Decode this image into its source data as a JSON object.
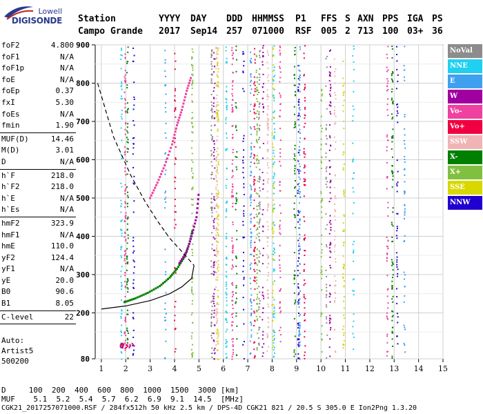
{
  "logo": {
    "line1": "Lowell",
    "line2": "DIGISONDE"
  },
  "header": {
    "labels": [
      "Station",
      "YYYY",
      "DAY",
      "DDD",
      "HHMMSS",
      "P1",
      "FFS",
      "S",
      "AXN",
      "PPS",
      "IGA",
      "PS"
    ],
    "values": [
      "Campo Grande",
      "2017",
      "Sep14",
      "257",
      "071000",
      "RSF",
      "005",
      "2",
      "713",
      "100",
      "03+",
      "36"
    ]
  },
  "params_group1": [
    {
      "k": "foF2",
      "v": "4.800"
    },
    {
      "k": "foF1",
      "v": "N/A"
    },
    {
      "k": "foF1p",
      "v": "N/A"
    },
    {
      "k": "foE",
      "v": "N/A"
    },
    {
      "k": "foEp",
      "v": "0.37"
    },
    {
      "k": "fxI",
      "v": "5.30"
    },
    {
      "k": "foEs",
      "v": "N/A"
    },
    {
      "k": "fmin",
      "v": "1.90"
    }
  ],
  "params_group2": [
    {
      "k": "MUF(D)",
      "v": "14.46"
    },
    {
      "k": "M(D)",
      "v": "3.01"
    },
    {
      "k": "D",
      "v": "N/A"
    }
  ],
  "params_group3": [
    {
      "k": "h`F",
      "v": "218.0"
    },
    {
      "k": "h`F2",
      "v": "218.0"
    },
    {
      "k": "h`E",
      "v": "N/A"
    },
    {
      "k": "h`Es",
      "v": "N/A"
    }
  ],
  "params_group4": [
    {
      "k": "hmF2",
      "v": "323.9"
    },
    {
      "k": "hmF1",
      "v": "N/A"
    },
    {
      "k": "hmE",
      "v": "110.0"
    },
    {
      "k": "yF2",
      "v": "124.4"
    },
    {
      "k": "yF1",
      "v": "N/A"
    },
    {
      "k": "yE",
      "v": "20.0"
    },
    {
      "k": "B0",
      "v": "90.6"
    },
    {
      "k": "B1",
      "v": "8.05"
    }
  ],
  "params_group5": [
    {
      "k": "C-level",
      "v": "22"
    }
  ],
  "autoscaling": {
    "line1": "Auto:",
    "line2": "Artist5",
    "line3": "500200"
  },
  "legend": [
    {
      "label": "NoVal",
      "color": "#8c8c8c"
    },
    {
      "label": "NNE",
      "color": "#20d0f0"
    },
    {
      "label": "E",
      "color": "#40a0f0"
    },
    {
      "label": "W",
      "color": "#a000a0"
    },
    {
      "label": "Vo-",
      "color": "#f040a0"
    },
    {
      "label": "Vo+",
      "color": "#f00040"
    },
    {
      "label": "SSW",
      "color": "#f0b4b4"
    },
    {
      "label": "X-",
      "color": "#008000"
    },
    {
      "label": "X+",
      "color": "#80c040"
    },
    {
      "label": "SSE",
      "color": "#d8d800"
    },
    {
      "label": "NNW",
      "color": "#2000d0"
    }
  ],
  "footer": {
    "row_d": "D     100  200  400  600  800  1000  1500  3000 [km]",
    "row_muf": "MUF    5.1  5.2  5.4  5.7  6.2  6.9  9.1  14.5  [MHz]",
    "row_file": "CGK21_2017257071000.RSF / 284fx512h 50 kHz 2.5 km / DPS-4D CGK21 821 / 20.5 S 305.0 E Ion2Png 1.3.20"
  },
  "chart_data": {
    "type": "scatter",
    "title": "",
    "xlabel": "",
    "ylabel": "",
    "xlim": [
      0.75,
      15
    ],
    "ylim": [
      80,
      900
    ],
    "x_ticks": [
      "1",
      "2",
      "3",
      "4",
      "5",
      "6",
      "7",
      "8",
      "9",
      "10",
      "11",
      "12",
      "13",
      "14",
      "15"
    ],
    "y_ticks": [
      "900",
      "800",
      "700",
      "600",
      "500",
      "400",
      "300",
      "200",
      "80"
    ],
    "series": [
      {
        "name": "X-",
        "color": "#008000",
        "trace": [
          [
            1.95,
            228
          ],
          [
            2.4,
            238
          ],
          [
            2.9,
            252
          ],
          [
            3.4,
            270
          ],
          [
            3.8,
            292
          ],
          [
            4.1,
            315
          ],
          [
            4.4,
            345
          ],
          [
            4.6,
            380
          ],
          [
            4.75,
            420
          ]
        ]
      },
      {
        "name": "Vo-",
        "color": "#f040a0",
        "trace": [
          [
            3.0,
            500
          ],
          [
            3.3,
            540
          ],
          [
            3.6,
            585
          ],
          [
            3.9,
            640
          ],
          [
            4.1,
            690
          ],
          [
            4.3,
            730
          ],
          [
            4.5,
            780
          ],
          [
            4.7,
            820
          ]
        ]
      },
      {
        "name": "W",
        "color": "#a000a0",
        "trace": [
          [
            4.2,
            330
          ],
          [
            4.5,
            360
          ],
          [
            4.7,
            400
          ],
          [
            4.9,
            450
          ],
          [
            5.0,
            520
          ]
        ]
      }
    ],
    "profile_solid": [
      [
        1.0,
        210
      ],
      [
        2.0,
        218
      ],
      [
        3.0,
        232
      ],
      [
        3.8,
        250
      ],
      [
        4.3,
        268
      ],
      [
        4.7,
        290
      ],
      [
        4.8,
        324
      ]
    ],
    "profile_dashed": [
      [
        0.85,
        800
      ],
      [
        1.5,
        660
      ],
      [
        2.2,
        560
      ],
      [
        2.8,
        490
      ],
      [
        3.3,
        440
      ],
      [
        3.8,
        395
      ],
      [
        4.3,
        360
      ],
      [
        4.8,
        324
      ]
    ]
  }
}
